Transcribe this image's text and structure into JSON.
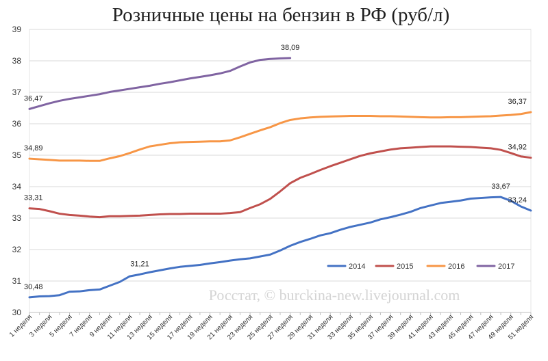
{
  "chart_data": {
    "type": "line",
    "title": "Розничные цены на бензин в РФ (руб/л)",
    "xlabel": "",
    "ylabel": "",
    "ylim": [
      30,
      39
    ],
    "yticks": [
      "30",
      "31",
      "32",
      "33",
      "34",
      "35",
      "36",
      "37",
      "38",
      "39"
    ],
    "x_ticks": [
      "1 неделя",
      "3 неделя",
      "5 неделя",
      "7 неделя",
      "9 неделя",
      "11 неделя",
      "13 неделя",
      "15 неделя",
      "17 неделя",
      "19 неделя",
      "21 неделя",
      "23 неделя",
      "25 неделя",
      "27 неделя",
      "29 неделя",
      "31 неделя",
      "33 неделя",
      "35 неделя",
      "37 неделя",
      "39 неделя",
      "41 неделя",
      "43 неделя",
      "45 неделя",
      "47 неделя",
      "49 неделя",
      "51 неделя"
    ],
    "grid": true,
    "legend_position": "bottom-right",
    "watermark": "Росстат, © burckina-new.livejournal.com",
    "series": [
      {
        "name": "2014",
        "color": "#4472c4",
        "values": [
          30.48,
          30.51,
          30.52,
          30.55,
          30.66,
          30.67,
          30.71,
          30.73,
          30.85,
          30.97,
          31.15,
          31.21,
          31.28,
          31.34,
          31.4,
          31.45,
          31.48,
          31.51,
          31.56,
          31.6,
          31.65,
          31.69,
          31.72,
          31.78,
          31.84,
          31.97,
          32.12,
          32.24,
          32.34,
          32.45,
          32.52,
          32.63,
          32.72,
          32.79,
          32.86,
          32.96,
          33.03,
          33.11,
          33.2,
          33.32,
          33.4,
          33.48,
          33.52,
          33.56,
          33.62,
          33.64,
          33.66,
          33.67,
          33.55,
          33.37,
          33.24
        ]
      },
      {
        "name": "2015",
        "color": "#c0504d",
        "values": [
          33.31,
          33.29,
          33.22,
          33.14,
          33.1,
          33.08,
          33.05,
          33.03,
          33.06,
          33.06,
          33.07,
          33.08,
          33.1,
          33.12,
          33.13,
          33.13,
          33.14,
          33.14,
          33.14,
          33.14,
          33.16,
          33.19,
          33.32,
          33.44,
          33.61,
          33.85,
          34.11,
          34.28,
          34.4,
          34.53,
          34.65,
          34.76,
          34.87,
          34.98,
          35.06,
          35.12,
          35.18,
          35.22,
          35.24,
          35.26,
          35.28,
          35.28,
          35.28,
          35.27,
          35.26,
          35.24,
          35.22,
          35.17,
          35.07,
          34.96,
          34.92
        ]
      },
      {
        "name": "2016",
        "color": "#f79646",
        "values": [
          34.89,
          34.87,
          34.85,
          34.83,
          34.83,
          34.83,
          34.82,
          34.82,
          34.9,
          34.97,
          35.07,
          35.18,
          35.28,
          35.33,
          35.38,
          35.41,
          35.42,
          35.43,
          35.44,
          35.44,
          35.47,
          35.57,
          35.68,
          35.79,
          35.89,
          36.02,
          36.12,
          36.17,
          36.2,
          36.22,
          36.23,
          36.24,
          36.25,
          36.25,
          36.25,
          36.24,
          36.24,
          36.23,
          36.22,
          36.21,
          36.2,
          36.2,
          36.21,
          36.21,
          36.22,
          36.23,
          36.24,
          36.26,
          36.28,
          36.31,
          36.37
        ]
      },
      {
        "name": "2017",
        "color": "#8064a2",
        "values": [
          36.47,
          36.56,
          36.65,
          36.73,
          36.79,
          36.84,
          36.89,
          36.94,
          37.01,
          37.06,
          37.11,
          37.16,
          37.21,
          37.27,
          37.32,
          37.38,
          37.44,
          37.49,
          37.54,
          37.6,
          37.68,
          37.82,
          37.95,
          38.03,
          38.06,
          38.08,
          38.09
        ]
      }
    ],
    "data_labels": [
      {
        "series": "2014",
        "index": 0,
        "text": "30,48"
      },
      {
        "series": "2014",
        "index": 11,
        "text": "31,21"
      },
      {
        "series": "2014",
        "index": 47,
        "text": "33,67"
      },
      {
        "series": "2014",
        "index": 50,
        "text": "33,24"
      },
      {
        "series": "2015",
        "index": 0,
        "text": "33,31"
      },
      {
        "series": "2015",
        "index": 50,
        "text": "34,92"
      },
      {
        "series": "2016",
        "index": 0,
        "text": "34,89"
      },
      {
        "series": "2016",
        "index": 50,
        "text": "36,37"
      },
      {
        "series": "2017",
        "index": 0,
        "text": "36,47"
      },
      {
        "series": "2017",
        "index": 26,
        "text": "38,09"
      }
    ]
  }
}
